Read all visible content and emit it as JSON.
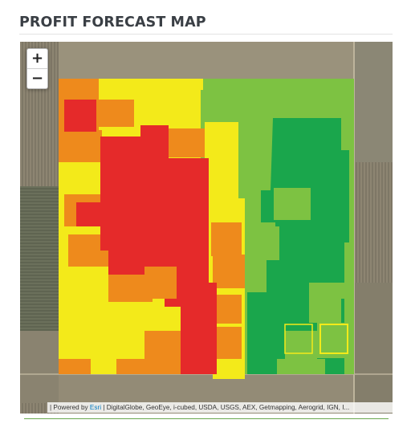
{
  "page": {
    "title": "PROFIT FORECAST MAP"
  },
  "map": {
    "zoom_in_label": "+",
    "zoom_out_label": "−",
    "attribution": {
      "prefix": "| Powered by ",
      "esri_link": "Esri",
      "sources": " | DigitalGlobe, GeoEye, i-cubed, USDA, USGS, AEX, Getmapping, Aerogrid, IGN, I..."
    },
    "legend_colors": {
      "high_profit": "#1aa64c",
      "above_average": "#7dc242",
      "average": "#f3ea1a",
      "below_average": "#ee8a1c",
      "loss": "#e52a2a"
    }
  }
}
